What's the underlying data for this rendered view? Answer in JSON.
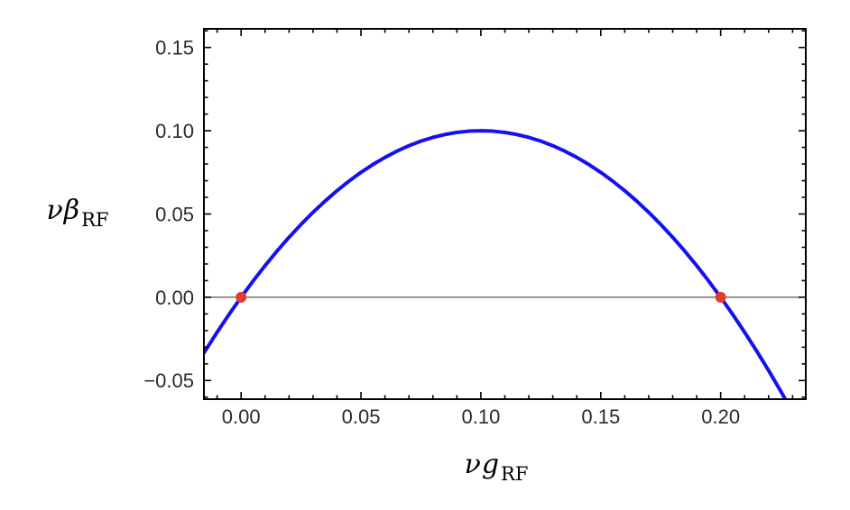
{
  "chart_data": {
    "type": "line",
    "title": "",
    "xlabel": {
      "main": "νg",
      "sub": "RF"
    },
    "ylabel": {
      "main": "νβ",
      "sub": "RF"
    },
    "x_range": [
      -0.0155,
      0.2355
    ],
    "y_range": [
      -0.0612,
      0.1612
    ],
    "grid": false,
    "legend": "none",
    "frame": true,
    "x_ticks": [
      {
        "v": 0.0,
        "label": "0.00"
      },
      {
        "v": 0.05,
        "label": "0.05"
      },
      {
        "v": 0.1,
        "label": "0.10"
      },
      {
        "v": 0.15,
        "label": "0.15"
      },
      {
        "v": 0.2,
        "label": "0.20"
      }
    ],
    "y_ticks": [
      {
        "v": -0.05,
        "label": "−0.05"
      },
      {
        "v": 0.0,
        "label": "0.00"
      },
      {
        "v": 0.05,
        "label": "0.05"
      },
      {
        "v": 0.1,
        "label": "0.10"
      },
      {
        "v": 0.15,
        "label": "0.15"
      }
    ],
    "minor_tick_step": 0.01,
    "zero_line": {
      "y": 0.0,
      "color": "#5a5a5a",
      "width": 1.3
    },
    "series": [
      {
        "color": "#1411f0",
        "stroke_width": 4,
        "points": [
          [
            -0.0155,
            -0.0334
          ],
          [
            -0.015,
            -0.03225
          ],
          [
            -0.01,
            -0.021
          ],
          [
            -0.005,
            -0.01025
          ],
          [
            0.0,
            0.0
          ],
          [
            0.005,
            0.00975
          ],
          [
            0.01,
            0.019
          ],
          [
            0.015,
            0.02775
          ],
          [
            0.02,
            0.036
          ],
          [
            0.025,
            0.04375
          ],
          [
            0.03,
            0.051
          ],
          [
            0.035,
            0.05775
          ],
          [
            0.04,
            0.064
          ],
          [
            0.045,
            0.06975
          ],
          [
            0.05,
            0.075
          ],
          [
            0.055,
            0.07975
          ],
          [
            0.06,
            0.084
          ],
          [
            0.065,
            0.08775
          ],
          [
            0.07,
            0.091
          ],
          [
            0.075,
            0.09375
          ],
          [
            0.08,
            0.096
          ],
          [
            0.085,
            0.09775
          ],
          [
            0.09,
            0.099
          ],
          [
            0.095,
            0.09975
          ],
          [
            0.1,
            0.1
          ],
          [
            0.105,
            0.09975
          ],
          [
            0.11,
            0.099
          ],
          [
            0.115,
            0.09775
          ],
          [
            0.12,
            0.096
          ],
          [
            0.125,
            0.09375
          ],
          [
            0.13,
            0.091
          ],
          [
            0.135,
            0.08775
          ],
          [
            0.14,
            0.084
          ],
          [
            0.145,
            0.07975
          ],
          [
            0.15,
            0.075
          ],
          [
            0.155,
            0.06975
          ],
          [
            0.16,
            0.064
          ],
          [
            0.165,
            0.05775
          ],
          [
            0.17,
            0.051
          ],
          [
            0.175,
            0.04375
          ],
          [
            0.18,
            0.036
          ],
          [
            0.185,
            0.02775
          ],
          [
            0.19,
            0.019
          ],
          [
            0.195,
            0.00975
          ],
          [
            0.2,
            0.0
          ],
          [
            0.205,
            -0.01025
          ],
          [
            0.21,
            -0.021
          ],
          [
            0.215,
            -0.03225
          ],
          [
            0.22,
            -0.044
          ],
          [
            0.225,
            -0.05625
          ],
          [
            0.23,
            -0.069
          ],
          [
            0.235,
            -0.08225
          ]
        ]
      }
    ],
    "markers": {
      "color": "#e23b2c",
      "radius": 6,
      "points": [
        [
          0.0,
          0.0
        ],
        [
          0.2,
          0.0
        ]
      ]
    },
    "frame_color": "#000000",
    "tick_label_color": "#2b2b2b",
    "tick_label_size": 22
  }
}
